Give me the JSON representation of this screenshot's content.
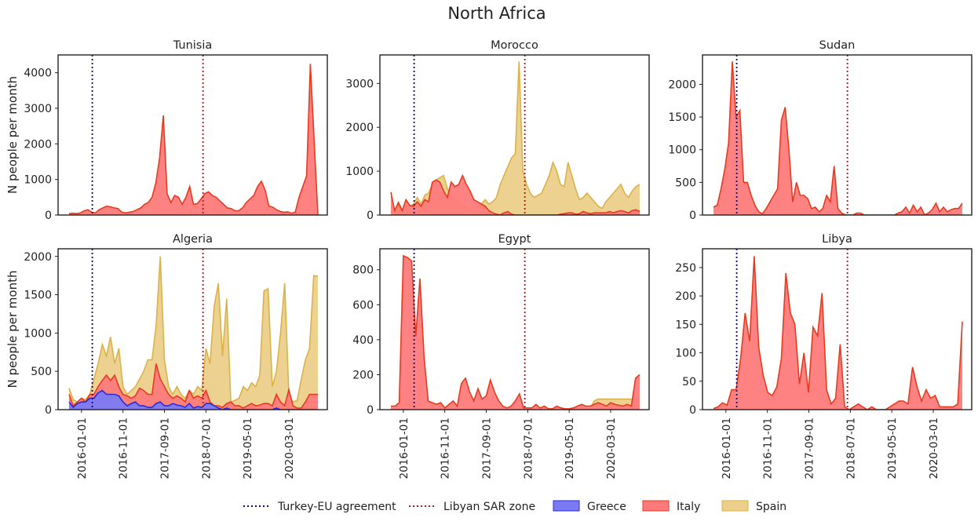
{
  "figure_title": "North Africa",
  "colors": {
    "greece": "#7a7af5",
    "greece_edge": "#2b2bd6",
    "italy": "#ff7b7b",
    "italy_edge": "#e83a1f",
    "spain": "#ebcf8b",
    "spain_edge": "#dbb24a",
    "turkey_line": "#0c0c7a",
    "libya_line": "#a61c1c"
  },
  "legend": {
    "turkey": "Turkey-EU agreement",
    "libya": "Libyan SAR zone",
    "greece": "Greece",
    "italy": "Italy",
    "spain": "Spain"
  },
  "chart_data": [
    {
      "type": "area",
      "title": "Tunisia",
      "ylabel": "N people per month",
      "x_ticks": [
        "2016-01-01",
        "2016-11-01",
        "2017-09-01",
        "2018-07-01",
        "2019-05-01",
        "2020-03-01"
      ],
      "y_ticks": [
        0,
        1000,
        2000,
        3000,
        4000
      ],
      "ylim": [
        0,
        4500
      ],
      "series": [
        {
          "name": "Spain",
          "values": [
            0,
            0,
            0,
            0,
            0,
            0,
            0,
            0,
            0,
            0,
            0,
            0,
            0,
            0,
            0,
            0,
            0,
            0,
            0,
            0,
            0,
            0,
            0,
            0,
            0,
            0,
            0,
            0,
            0,
            0,
            0,
            0,
            0,
            0,
            0,
            0,
            0,
            0,
            0,
            0,
            0,
            0,
            0,
            0,
            0,
            0,
            0,
            0,
            0,
            0,
            0,
            0,
            0,
            0,
            20,
            20,
            20,
            20,
            0,
            20,
            20,
            20,
            0,
            0,
            0,
            0,
            0
          ]
        },
        {
          "name": "Italy",
          "values": [
            40,
            50,
            40,
            60,
            120,
            150,
            80,
            60,
            150,
            200,
            250,
            230,
            200,
            180,
            80,
            60,
            80,
            100,
            150,
            200,
            300,
            350,
            500,
            900,
            1600,
            2800,
            600,
            350,
            550,
            500,
            300,
            500,
            800,
            300,
            320,
            450,
            600,
            650,
            550,
            500,
            400,
            300,
            200,
            180,
            120,
            120,
            200,
            350,
            450,
            550,
            800,
            950,
            700,
            250,
            220,
            150,
            100,
            80,
            90,
            50,
            80,
            500,
            800,
            1100,
            4250,
            2100,
            0
          ]
        },
        {
          "name": "Greece",
          "values": []
        }
      ]
    },
    {
      "type": "area",
      "title": "Morocco",
      "ylabel": "",
      "x_ticks": [
        "2016-01-01",
        "2016-11-01",
        "2017-09-01",
        "2018-07-01",
        "2019-05-01",
        "2020-03-01"
      ],
      "y_ticks": [
        0,
        1000,
        2000,
        3000
      ],
      "ylim": [
        0,
        3650
      ],
      "series": [
        {
          "name": "Spain",
          "values": [
            50,
            100,
            300,
            100,
            300,
            200,
            250,
            400,
            250,
            450,
            500,
            700,
            800,
            850,
            900,
            600,
            400,
            300,
            300,
            200,
            200,
            100,
            100,
            200,
            250,
            350,
            250,
            300,
            400,
            700,
            900,
            1100,
            1300,
            1400,
            3500,
            1000,
            700,
            500,
            400,
            450,
            500,
            700,
            900,
            1200,
            1000,
            700,
            650,
            1200,
            900,
            600,
            350,
            400,
            500,
            400,
            300,
            200,
            150,
            300,
            400,
            500,
            600,
            700,
            500,
            400,
            550,
            650,
            700
          ]
        },
        {
          "name": "Italy",
          "values": [
            520,
            100,
            280,
            100,
            350,
            220,
            200,
            300,
            200,
            350,
            300,
            750,
            800,
            750,
            550,
            400,
            750,
            650,
            700,
            900,
            700,
            550,
            350,
            300,
            250,
            200,
            100,
            50,
            20,
            0,
            50,
            80,
            20,
            0,
            0,
            0,
            0,
            0,
            0,
            0,
            0,
            0,
            0,
            0,
            0,
            20,
            30,
            50,
            50,
            20,
            30,
            80,
            50,
            30,
            50,
            50,
            50,
            50,
            80,
            50,
            80,
            100,
            80,
            50,
            100,
            120,
            80
          ]
        },
        {
          "name": "Greece",
          "values": []
        }
      ]
    },
    {
      "type": "area",
      "title": "Sudan",
      "ylabel": "",
      "x_ticks": [
        "2016-01-01",
        "2016-11-01",
        "2017-09-01",
        "2018-07-01",
        "2019-05-01",
        "2020-03-01"
      ],
      "y_ticks": [
        0,
        500,
        1000,
        1500,
        2000
      ],
      "ylim": [
        0,
        2450
      ],
      "series": [
        {
          "name": "Spain",
          "values": []
        },
        {
          "name": "Italy",
          "values": [
            120,
            150,
            400,
            700,
            1100,
            2350,
            1500,
            1600,
            500,
            500,
            300,
            150,
            50,
            20,
            100,
            200,
            300,
            400,
            1450,
            1650,
            1000,
            200,
            500,
            300,
            300,
            250,
            100,
            120,
            50,
            100,
            300,
            200,
            750,
            100,
            30,
            0,
            0,
            0,
            30,
            30,
            0,
            0,
            0,
            0,
            0,
            0,
            0,
            0,
            0,
            30,
            50,
            120,
            30,
            150,
            50,
            120,
            0,
            30,
            80,
            180,
            50,
            120,
            50,
            80,
            100,
            100,
            180
          ]
        },
        {
          "name": "Greece",
          "values": []
        }
      ]
    },
    {
      "type": "area",
      "title": "Algeria",
      "ylabel": "N people per month",
      "x_ticks": [
        "2016-01-01",
        "2016-11-01",
        "2017-09-01",
        "2018-07-01",
        "2019-05-01",
        "2020-03-01"
      ],
      "y_ticks": [
        0,
        500,
        1000,
        1500,
        2000
      ],
      "ylim": [
        0,
        2100
      ],
      "series": [
        {
          "name": "Spain",
          "values": [
            280,
            130,
            100,
            150,
            130,
            200,
            400,
            600,
            850,
            700,
            950,
            600,
            800,
            300,
            200,
            250,
            300,
            400,
            500,
            650,
            650,
            1100,
            2000,
            650,
            300,
            200,
            300,
            200,
            150,
            250,
            200,
            300,
            250,
            800,
            600,
            1350,
            1650,
            700,
            1450,
            100,
            120,
            150,
            300,
            250,
            350,
            300,
            450,
            1550,
            1580,
            300,
            500,
            1000,
            1650,
            200,
            100,
            120,
            400,
            650,
            800,
            1750,
            1740
          ]
        },
        {
          "name": "Italy",
          "values": [
            200,
            50,
            100,
            150,
            100,
            200,
            200,
            300,
            380,
            450,
            380,
            450,
            300,
            200,
            180,
            150,
            180,
            280,
            250,
            200,
            200,
            600,
            400,
            300,
            200,
            150,
            180,
            150,
            100,
            250,
            150,
            180,
            150,
            250,
            100,
            50,
            50,
            30,
            80,
            100,
            50,
            50,
            20,
            50,
            80,
            50,
            60,
            80,
            80,
            50,
            200,
            100,
            50,
            260,
            50,
            20,
            20,
            100,
            200,
            200,
            200
          ]
        },
        {
          "name": "Greece",
          "values": [
            100,
            30,
            80,
            100,
            100,
            150,
            150,
            220,
            250,
            200,
            200,
            200,
            180,
            100,
            50,
            80,
            100,
            50,
            50,
            30,
            30,
            80,
            100,
            50,
            50,
            80,
            60,
            50,
            30,
            80,
            20,
            40,
            30,
            80,
            80,
            50,
            20,
            0,
            20,
            0,
            0,
            0,
            0,
            0,
            0,
            0,
            0,
            0,
            0,
            0,
            20,
            0,
            0,
            0,
            0,
            0,
            0,
            0,
            0,
            0,
            0
          ]
        }
      ]
    },
    {
      "type": "area",
      "title": "Egypt",
      "ylabel": "",
      "x_ticks": [
        "2016-01-01",
        "2016-11-01",
        "2017-09-01",
        "2018-07-01",
        "2019-05-01",
        "2020-03-01"
      ],
      "y_ticks": [
        0,
        200,
        400,
        600,
        800
      ],
      "ylim": [
        0,
        920
      ],
      "series": [
        {
          "name": "Spain",
          "values": [
            0,
            0,
            0,
            0,
            0,
            0,
            0,
            0,
            0,
            0,
            0,
            0,
            0,
            0,
            0,
            0,
            0,
            0,
            0,
            0,
            0,
            0,
            0,
            0,
            0,
            0,
            0,
            0,
            0,
            0,
            0,
            0,
            0,
            0,
            0,
            0,
            0,
            0,
            0,
            0,
            0,
            0,
            0,
            0,
            0,
            0,
            0,
            0,
            0,
            50,
            60,
            60,
            60,
            60,
            60,
            60,
            60,
            60,
            60,
            60,
            60
          ]
        },
        {
          "name": "Italy",
          "values": [
            20,
            20,
            40,
            880,
            870,
            850,
            420,
            750,
            300,
            50,
            40,
            30,
            40,
            10,
            30,
            50,
            20,
            150,
            180,
            100,
            50,
            120,
            60,
            80,
            170,
            100,
            50,
            20,
            10,
            20,
            50,
            90,
            10,
            10,
            10,
            30,
            10,
            20,
            5,
            5,
            20,
            10,
            5,
            5,
            10,
            20,
            30,
            20,
            20,
            30,
            40,
            30,
            20,
            40,
            30,
            25,
            20,
            30,
            20,
            180,
            200
          ]
        },
        {
          "name": "Greece",
          "values": []
        }
      ]
    },
    {
      "type": "area",
      "title": "Libya",
      "ylabel": "",
      "x_ticks": [
        "2016-01-01",
        "2016-11-01",
        "2017-09-01",
        "2018-07-01",
        "2019-05-01",
        "2020-03-01"
      ],
      "y_ticks": [
        0,
        50,
        100,
        150,
        200,
        250
      ],
      "ylim": [
        0,
        283
      ],
      "series": [
        {
          "name": "Spain",
          "values": []
        },
        {
          "name": "Italy",
          "values": [
            2,
            5,
            12,
            8,
            35,
            35,
            90,
            170,
            120,
            270,
            110,
            60,
            30,
            25,
            40,
            90,
            240,
            170,
            150,
            45,
            100,
            30,
            145,
            130,
            205,
            35,
            10,
            20,
            115,
            5,
            0,
            5,
            10,
            5,
            0,
            5,
            0,
            0,
            0,
            5,
            10,
            15,
            15,
            10,
            75,
            40,
            15,
            35,
            20,
            25,
            5,
            5,
            5,
            5,
            10,
            155
          ]
        },
        {
          "name": "Greece",
          "values": []
        }
      ]
    }
  ]
}
